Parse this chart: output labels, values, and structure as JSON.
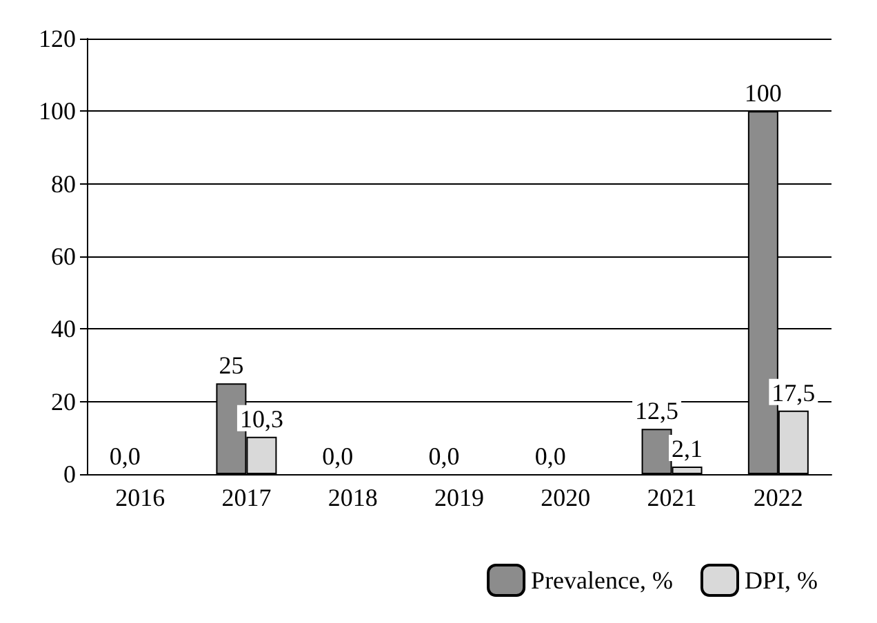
{
  "chart_data": {
    "type": "bar",
    "categories": [
      "2016",
      "2017",
      "2018",
      "2019",
      "2020",
      "2021",
      "2022"
    ],
    "series": [
      {
        "name": "Prevalence, %",
        "color": "#8c8c8c",
        "values": [
          0,
          25,
          0,
          0,
          0,
          12.5,
          100
        ],
        "value_labels": [
          "0,0",
          "25",
          "0,0",
          "0,0",
          "0,0",
          "12,5",
          "100"
        ]
      },
      {
        "name": "DPI, %",
        "color": "#d9d9d9",
        "values": [
          0,
          10.3,
          0,
          0,
          0,
          2.1,
          17.5
        ],
        "value_labels": [
          null,
          "10,3",
          null,
          null,
          null,
          "2,1",
          "17,5"
        ]
      }
    ],
    "ylim": [
      0,
      120
    ],
    "yticks": [
      0,
      20,
      40,
      60,
      80,
      100,
      120
    ],
    "grid": "y",
    "legend": "bottom right"
  }
}
